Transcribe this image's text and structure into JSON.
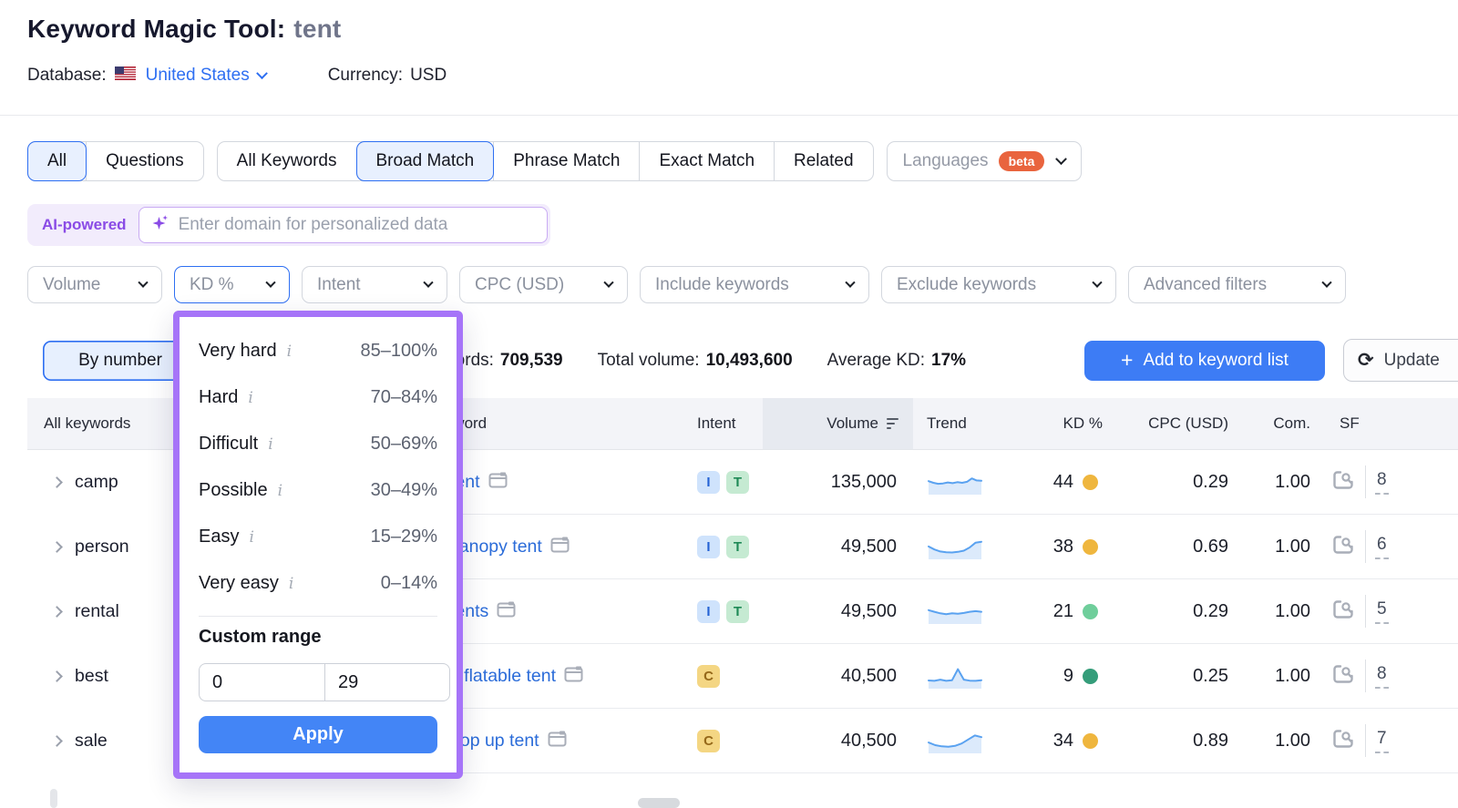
{
  "colors": {
    "accent_blue": "#2e6ff2",
    "button_blue": "#3d7cf5",
    "apply_blue": "#4385f6",
    "panel_purple": "#a674f8",
    "ai_purple": "#8a4be6",
    "beta_orange": "#e9643e",
    "link_blue": "#2b6cd9",
    "kd_medium": "#efb63e",
    "kd_easy": "#6fce9b",
    "kd_very_easy": "#359d7a",
    "trend_line": "#5aa2f0",
    "trend_fill": "#dceafb"
  },
  "header": {
    "title": "Keyword Magic Tool:",
    "query": "tent",
    "database_label": "Database:",
    "database_value": "United States",
    "currency_label": "Currency:",
    "currency_value": "USD"
  },
  "tabs": {
    "group1": [
      {
        "label": "All",
        "selected": true
      },
      {
        "label": "Questions",
        "selected": false
      }
    ],
    "group2": [
      {
        "label": "All Keywords",
        "selected": false
      },
      {
        "label": "Broad Match",
        "selected": true
      },
      {
        "label": "Phrase Match",
        "selected": false
      },
      {
        "label": "Exact Match",
        "selected": false
      },
      {
        "label": "Related",
        "selected": false
      }
    ],
    "languages_label": "Languages",
    "languages_badge": "beta"
  },
  "ai_bar": {
    "badge": "AI-powered",
    "placeholder": "Enter domain for personalized data"
  },
  "filters": [
    "Volume",
    "KD %",
    "Intent",
    "CPC (USD)",
    "Include keywords",
    "Exclude keywords",
    "Advanced filters"
  ],
  "kd_panel": {
    "options": [
      {
        "label": "Very hard",
        "range": "85–100%"
      },
      {
        "label": "Hard",
        "range": "70–84%"
      },
      {
        "label": "Difficult",
        "range": "50–69%"
      },
      {
        "label": "Possible",
        "range": "30–49%"
      },
      {
        "label": "Easy",
        "range": "15–29%"
      },
      {
        "label": "Very easy",
        "range": "0–14%"
      }
    ],
    "custom_range_label": "Custom range",
    "from_value": "0",
    "to_value": "29",
    "apply_label": "Apply"
  },
  "toolbar": {
    "view_toggle_label": "By number",
    "stats": [
      {
        "label": "All keywords:",
        "value": "709,539"
      },
      {
        "label": "Total volume:",
        "value": "10,493,600"
      },
      {
        "label": "Average KD:",
        "value": "17%"
      }
    ],
    "add_button_label": "Add to keyword list",
    "update_button_label": "Update"
  },
  "sidebar": {
    "header": "All keywords",
    "items": [
      "camp",
      "person",
      "rental",
      "best",
      "sale"
    ]
  },
  "intent_colors": {
    "I": {
      "bg": "#cfe3fc",
      "fg": "#2563d4"
    },
    "T": {
      "bg": "#c5ead2",
      "fg": "#1f8a56"
    },
    "C": {
      "bg": "#f4d683",
      "fg": "#96691a"
    }
  },
  "table": {
    "columns": {
      "keyword": "Keyword",
      "intent": "Intent",
      "volume": "Volume",
      "trend": "Trend",
      "kd": "KD %",
      "cpc": "CPC (USD)",
      "com": "Com.",
      "sf": "SF"
    },
    "rows": [
      {
        "keyword": "tent",
        "intents": [
          "I",
          "T"
        ],
        "volume": "135,000",
        "trend": [
          58,
          50,
          45,
          47,
          52,
          48,
          53,
          50,
          55,
          72,
          62,
          60
        ],
        "kd": "44",
        "kd_color": "#efb63e",
        "cpc": "0.29",
        "com": "1.00",
        "sf": "8"
      },
      {
        "keyword": "canopy tent",
        "intents": [
          "I",
          "T"
        ],
        "volume": "49,500",
        "trend": [
          55,
          40,
          30,
          26,
          25,
          28,
          34,
          50,
          74,
          78
        ],
        "kd": "38",
        "kd_color": "#efb63e",
        "cpc": "0.69",
        "com": "1.00",
        "sf": "6"
      },
      {
        "keyword": "tents",
        "intents": [
          "I",
          "T"
        ],
        "volume": "49,500",
        "trend": [
          60,
          52,
          44,
          40,
          44,
          42,
          46,
          52,
          55,
          52
        ],
        "kd": "21",
        "kd_color": "#6fce9b",
        "cpc": "0.29",
        "com": "1.00",
        "sf": "5"
      },
      {
        "keyword": "inflatable tent",
        "intents": [
          "C"
        ],
        "volume": "40,500",
        "trend": [
          32,
          30,
          36,
          30,
          33,
          88,
          36,
          31,
          30,
          33
        ],
        "kd": "9",
        "kd_color": "#359d7a",
        "cpc": "0.25",
        "com": "1.00",
        "sf": "8"
      },
      {
        "keyword": "pop up tent",
        "intents": [
          "C"
        ],
        "volume": "40,500",
        "trend": [
          45,
          32,
          26,
          24,
          28,
          40,
          60,
          80,
          72
        ],
        "kd": "34",
        "kd_color": "#efb63e",
        "cpc": "0.89",
        "com": "1.00",
        "sf": "7"
      }
    ]
  }
}
